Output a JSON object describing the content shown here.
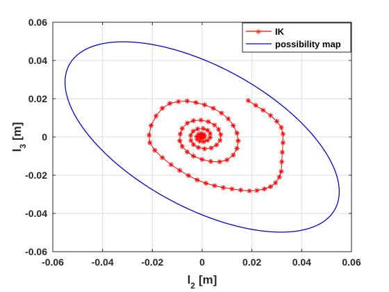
{
  "chart_data": {
    "type": "line",
    "xlabel": "l",
    "xlabel_sub": "2",
    "ylabel": "l",
    "ylabel_sub": "3",
    "unit": "[m]",
    "xlim": [
      -0.06,
      0.06
    ],
    "ylim": [
      -0.06,
      0.06
    ],
    "xticks": [
      "-0.06",
      "-0.04",
      "-0.02",
      "0",
      "0.02",
      "0.04",
      "0.06"
    ],
    "yticks": [
      "0.06",
      "0.04",
      "0.02",
      "0",
      "-0.02",
      "-0.04",
      "-0.06"
    ],
    "grid": true,
    "legend_position": "top-right",
    "series": [
      {
        "name": "IK",
        "color": "#ff0000",
        "marker": "asterisk",
        "points": [
          [
            0.0185,
            0.019
          ],
          [
            0.0215,
            0.0165
          ],
          [
            0.0245,
            0.014
          ],
          [
            0.0275,
            0.0112
          ],
          [
            0.03,
            0.0082
          ],
          [
            0.0318,
            0.005
          ],
          [
            0.0325,
            0.0015
          ],
          [
            0.0325,
            -0.003
          ],
          [
            0.0322,
            -0.008
          ],
          [
            0.032,
            -0.013
          ],
          [
            0.0318,
            -0.018
          ],
          [
            0.031,
            -0.021
          ],
          [
            0.0295,
            -0.024
          ],
          [
            0.0275,
            -0.026
          ],
          [
            0.025,
            -0.0272
          ],
          [
            0.022,
            -0.028
          ],
          [
            0.019,
            -0.0282
          ],
          [
            0.0155,
            -0.0278
          ],
          [
            0.012,
            -0.0272
          ],
          [
            0.0085,
            -0.0265
          ],
          [
            0.005,
            -0.0255
          ],
          [
            0.0015,
            -0.0242
          ],
          [
            -0.002,
            -0.0225
          ],
          [
            -0.0055,
            -0.0202
          ],
          [
            -0.009,
            -0.0175
          ],
          [
            -0.0125,
            -0.0145
          ],
          [
            -0.016,
            -0.0108
          ],
          [
            -0.019,
            -0.007
          ],
          [
            -0.021,
            -0.003
          ],
          [
            -0.0213,
            0.001
          ],
          [
            -0.0205,
            0.006
          ],
          [
            -0.0185,
            0.011
          ],
          [
            -0.016,
            0.015
          ],
          [
            -0.013,
            0.0175
          ],
          [
            -0.0095,
            0.0185
          ],
          [
            -0.006,
            0.0188
          ],
          [
            -0.0025,
            0.018
          ],
          [
            0.001,
            0.0168
          ],
          [
            0.0045,
            0.015
          ],
          [
            0.0078,
            0.0125
          ],
          [
            0.0105,
            0.0095
          ],
          [
            0.0125,
            0.006
          ],
          [
            0.014,
            0.002
          ],
          [
            0.0145,
            -0.002
          ],
          [
            0.014,
            -0.006
          ],
          [
            0.0125,
            -0.0095
          ],
          [
            0.01,
            -0.012
          ],
          [
            0.007,
            -0.013
          ],
          [
            0.0035,
            -0.0128
          ],
          [
            0.0,
            -0.0118
          ],
          [
            -0.0035,
            -0.01
          ],
          [
            -0.006,
            -0.0078
          ],
          [
            -0.008,
            -0.005
          ],
          [
            -0.009,
            -0.002
          ],
          [
            -0.0088,
            0.0015
          ],
          [
            -0.008,
            0.0045
          ],
          [
            -0.006,
            0.0072
          ],
          [
            -0.0035,
            0.0085
          ],
          [
            -0.0005,
            0.0088
          ],
          [
            0.0025,
            0.008
          ],
          [
            0.005,
            0.0062
          ],
          [
            0.0066,
            0.004
          ],
          [
            0.0075,
            0.0012
          ],
          [
            0.0072,
            -0.0018
          ],
          [
            0.0058,
            -0.0042
          ],
          [
            0.0036,
            -0.0058
          ],
          [
            0.001,
            -0.0062
          ],
          [
            -0.0015,
            -0.0055
          ],
          [
            -0.0035,
            -0.004
          ],
          [
            -0.0045,
            -0.0018
          ],
          [
            -0.0046,
            0.0008
          ],
          [
            -0.0036,
            0.003
          ],
          [
            -0.0018,
            0.0042
          ],
          [
            0.0004,
            0.0044
          ],
          [
            0.0022,
            0.0035
          ],
          [
            0.0032,
            0.0018
          ],
          [
            0.0032,
            -0.0002
          ],
          [
            0.0022,
            -0.0018
          ],
          [
            0.0006,
            -0.0025
          ],
          [
            -0.001,
            -0.0022
          ],
          [
            -0.002,
            -0.0012
          ],
          [
            -0.0022,
            0.0002
          ],
          [
            -0.0015,
            0.0014
          ],
          [
            -0.0004,
            0.0018
          ],
          [
            0.0006,
            0.0014
          ],
          [
            0.001,
            0.0005
          ],
          [
            0.0006,
            -0.0004
          ],
          [
            -0.0002,
            -0.0006
          ],
          [
            -0.0008,
            -0.0002
          ],
          [
            -0.0006,
            0.0004
          ],
          [
            0.0,
            0.0005
          ]
        ]
      },
      {
        "name": "possibility map",
        "color": "#0000cc",
        "marker": "none",
        "ellipse": {
          "center": [
            0,
            0
          ],
          "semi_major": 0.066,
          "semi_minor": 0.034,
          "angle_deg": -40
        }
      }
    ]
  }
}
